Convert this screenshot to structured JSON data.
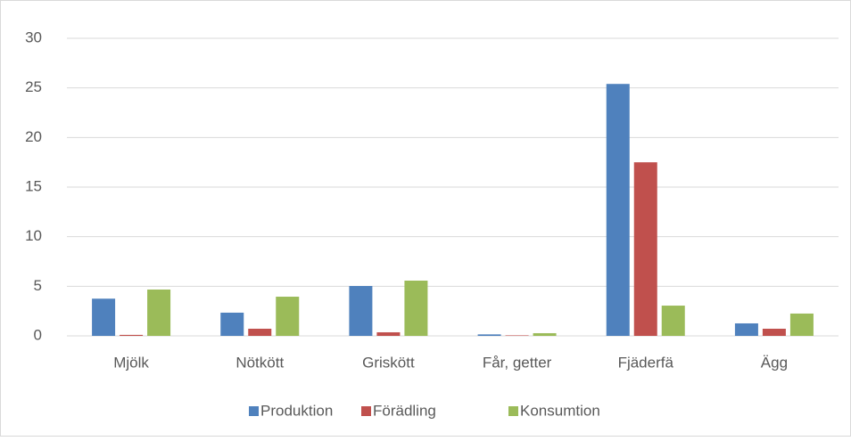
{
  "chart_data": {
    "type": "bar",
    "categories": [
      "Mjölk",
      "Nötkött",
      "Griskött",
      "Får, getter",
      "Fjäderfä",
      "Ägg"
    ],
    "series": [
      {
        "name": "Produktion",
        "color": "#4f81bd",
        "values": [
          3.75,
          2.34,
          5.03,
          0.15,
          25.4,
          1.26
        ]
      },
      {
        "name": "Förädling",
        "color": "#c0504d",
        "values": [
          0.1,
          0.72,
          0.36,
          0.05,
          17.5,
          0.72
        ]
      },
      {
        "name": "Konsumtion",
        "color": "#9bbb59",
        "values": [
          4.67,
          3.95,
          5.57,
          0.27,
          3.05,
          2.25
        ]
      }
    ],
    "ylim": [
      0,
      30
    ],
    "yticks": [
      0,
      5,
      10,
      15,
      20,
      25,
      30
    ],
    "grid": true,
    "legend": "bottom"
  }
}
